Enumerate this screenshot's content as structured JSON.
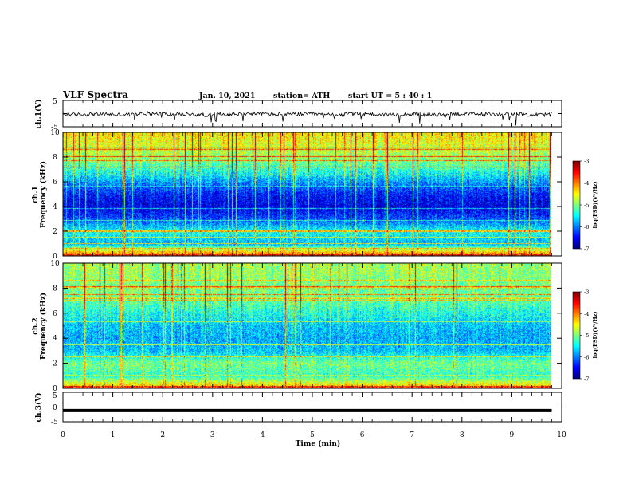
{
  "header": {
    "title": "VLF Spectra",
    "date": "Jan. 10, 2021",
    "station": "station= ATH",
    "start_ut": "start UT =  5 : 40 : 1"
  },
  "chart_data": [
    {
      "type": "line",
      "panel": "ch1-waveform",
      "ylabel": "ch.1(V)",
      "ylim": [
        -5,
        5
      ],
      "yticks": [
        "5",
        "-5"
      ],
      "xlim": [
        0,
        10
      ],
      "series": [
        {
          "values": [
            -0.3,
            -0.2,
            -0.4,
            0.1,
            -0.3,
            -0.5,
            -0.2,
            0.0,
            -0.3,
            -0.2,
            -0.4,
            -0.1,
            -0.3,
            -0.2,
            -0.5,
            -0.1,
            -0.2,
            -0.3,
            -0.4,
            -0.2
          ]
        }
      ]
    },
    {
      "type": "heatmap",
      "panel": "ch1-spectrogram",
      "ylabel": "ch.1\nFrequency (kHz)",
      "ylabel_lines": [
        "ch.1",
        "Frequency (kHz)"
      ],
      "ylim": [
        0,
        10
      ],
      "yticks": [
        "0",
        "2",
        "4",
        "6",
        "8",
        "10"
      ],
      "xlim": [
        0,
        10
      ],
      "colorbar": {
        "range": [
          -7,
          -3
        ],
        "ticks": [
          "-3",
          "-4",
          "-5",
          "-6",
          "-7"
        ],
        "label": "log(PSD)(V²/Hz)"
      },
      "freq_profile": [
        {
          "f": 0.3,
          "v": -4.2
        },
        {
          "f": 1.0,
          "v": -5.8
        },
        {
          "f": 2.0,
          "v": -5.4
        },
        {
          "f": 3.0,
          "v": -6.2
        },
        {
          "f": 4.0,
          "v": -6.6
        },
        {
          "f": 5.0,
          "v": -6.4
        },
        {
          "f": 6.0,
          "v": -5.9
        },
        {
          "f": 7.0,
          "v": -5.3
        },
        {
          "f": 8.0,
          "v": -4.9
        },
        {
          "f": 9.0,
          "v": -4.6
        },
        {
          "f": 10.0,
          "v": -4.4
        }
      ]
    },
    {
      "type": "heatmap",
      "panel": "ch2-spectrogram",
      "ylabel": "ch.2\nFrequency (kHz)",
      "ylabel_lines": [
        "ch.2",
        "Frequency (kHz)"
      ],
      "ylim": [
        0,
        10
      ],
      "yticks": [
        "0",
        "2",
        "4",
        "6",
        "8",
        "10"
      ],
      "xlim": [
        0,
        10
      ],
      "colorbar": {
        "range": [
          -7,
          -3
        ],
        "ticks": [
          "-3",
          "-4",
          "-5",
          "-6",
          "-7"
        ],
        "label": "log(PSD)(V²/Hz)"
      },
      "freq_profile": [
        {
          "f": 0.3,
          "v": -4.4
        },
        {
          "f": 1.0,
          "v": -5.3
        },
        {
          "f": 2.0,
          "v": -5.0
        },
        {
          "f": 3.0,
          "v": -5.7
        },
        {
          "f": 4.0,
          "v": -5.8
        },
        {
          "f": 5.0,
          "v": -5.7
        },
        {
          "f": 6.0,
          "v": -5.4
        },
        {
          "f": 7.0,
          "v": -5.1
        },
        {
          "f": 8.0,
          "v": -5.0
        },
        {
          "f": 9.0,
          "v": -4.9
        },
        {
          "f": 10.0,
          "v": -4.8
        }
      ]
    },
    {
      "type": "line",
      "panel": "ch3-waveform",
      "ylabel": "ch.3(V)",
      "ylim": [
        -5,
        5
      ],
      "yticks": [
        "5",
        "0",
        "-5"
      ],
      "xlabel": "Time (min)",
      "xlim": [
        0,
        10
      ],
      "xticks": [
        "0",
        "1",
        "2",
        "3",
        "4",
        "5",
        "6",
        "7",
        "8",
        "9",
        "10"
      ],
      "series": [
        {
          "values": [
            -1.2,
            -1.2,
            -1.2,
            -1.2,
            -1.2,
            -1.2,
            -1.2,
            -1.2,
            -1.2,
            -1.2
          ]
        }
      ]
    }
  ]
}
